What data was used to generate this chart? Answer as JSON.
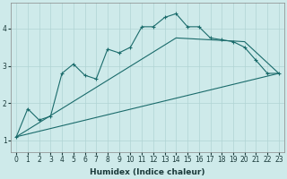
{
  "xlabel": "Humidex (Indice chaleur)",
  "bg_color": "#ceeaea",
  "grid_color": "#b0d4d4",
  "line_color": "#1a6b6b",
  "xlim": [
    -0.5,
    23.5
  ],
  "ylim": [
    0.7,
    4.7
  ],
  "xticks": [
    0,
    1,
    2,
    3,
    4,
    5,
    6,
    7,
    8,
    9,
    10,
    11,
    12,
    13,
    14,
    15,
    16,
    17,
    18,
    19,
    20,
    21,
    22,
    23
  ],
  "yticks": [
    1,
    2,
    3,
    4
  ],
  "line1_x": [
    0,
    1,
    2,
    3,
    4,
    5,
    6,
    7,
    8,
    9,
    10,
    11,
    12,
    13,
    14,
    15,
    16,
    17,
    18,
    19,
    20,
    21,
    22,
    23
  ],
  "line1_y": [
    1.1,
    1.85,
    1.55,
    1.65,
    2.8,
    3.05,
    2.75,
    2.65,
    3.45,
    3.35,
    3.5,
    4.05,
    4.05,
    4.3,
    4.4,
    4.05,
    4.05,
    3.75,
    3.7,
    3.65,
    3.5,
    3.15,
    2.8,
    2.8
  ],
  "line2_x": [
    0,
    23
  ],
  "line2_y": [
    1.1,
    2.8
  ],
  "line3_x": [
    0,
    14,
    20,
    23
  ],
  "line3_y": [
    1.1,
    3.75,
    3.65,
    2.8
  ],
  "figsize": [
    3.2,
    2.0
  ],
  "dpi": 100
}
